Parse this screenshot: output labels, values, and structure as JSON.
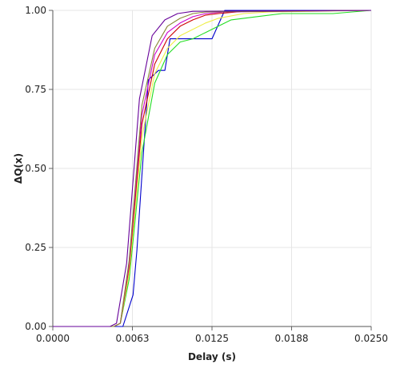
{
  "chart_data": {
    "type": "line",
    "title": "",
    "xlabel": "Delay (s)",
    "ylabel": "ΔQ(x)",
    "xlim": [
      0,
      0.025
    ],
    "ylim": [
      0,
      1
    ],
    "x_ticks": [
      0,
      0.00625,
      0.0125,
      0.01875,
      0.025
    ],
    "x_tick_labels": [
      "0.0000",
      "0.0063",
      "0.0125",
      "0.0188",
      "0.0250"
    ],
    "y_ticks": [
      0,
      0.25,
      0.5,
      0.75,
      1
    ],
    "y_tick_labels": [
      "0.00",
      "0.25",
      "0.50",
      "0.75",
      "1.00"
    ],
    "grid": true,
    "legend": "none",
    "series": [
      {
        "color": "#0000cc",
        "points": [
          [
            0,
            0
          ],
          [
            0.0055,
            0
          ],
          [
            0.0063,
            0.1
          ],
          [
            0.0066,
            0.24
          ],
          [
            0.0075,
            0.78
          ],
          [
            0.0083,
            0.81
          ],
          [
            0.0088,
            0.81
          ],
          [
            0.0092,
            0.91
          ],
          [
            0.0125,
            0.91
          ],
          [
            0.0135,
            1.0
          ],
          [
            0.025,
            1.0
          ]
        ]
      },
      {
        "color": "#22dd22",
        "points": [
          [
            0,
            0
          ],
          [
            0.0048,
            0
          ],
          [
            0.0053,
            0.01
          ],
          [
            0.006,
            0.15
          ],
          [
            0.007,
            0.55
          ],
          [
            0.008,
            0.77
          ],
          [
            0.009,
            0.86
          ],
          [
            0.01,
            0.9
          ],
          [
            0.011,
            0.91
          ],
          [
            0.012,
            0.93
          ],
          [
            0.013,
            0.95
          ],
          [
            0.014,
            0.97
          ],
          [
            0.016,
            0.98
          ],
          [
            0.018,
            0.99
          ],
          [
            0.022,
            0.99
          ],
          [
            0.025,
            1.0
          ]
        ]
      },
      {
        "color": "#eeee44",
        "points": [
          [
            0,
            0
          ],
          [
            0.0048,
            0
          ],
          [
            0.0053,
            0.01
          ],
          [
            0.006,
            0.17
          ],
          [
            0.007,
            0.6
          ],
          [
            0.008,
            0.8
          ],
          [
            0.009,
            0.88
          ],
          [
            0.01,
            0.92
          ],
          [
            0.011,
            0.94
          ],
          [
            0.012,
            0.96
          ],
          [
            0.013,
            0.975
          ],
          [
            0.015,
            0.99
          ],
          [
            0.017,
            0.995
          ],
          [
            0.025,
            1.0
          ]
        ]
      },
      {
        "color": "#cc0000",
        "points": [
          [
            0,
            0
          ],
          [
            0.0048,
            0
          ],
          [
            0.0053,
            0.01
          ],
          [
            0.006,
            0.19
          ],
          [
            0.007,
            0.64
          ],
          [
            0.008,
            0.83
          ],
          [
            0.009,
            0.91
          ],
          [
            0.01,
            0.95
          ],
          [
            0.011,
            0.97
          ],
          [
            0.012,
            0.985
          ],
          [
            0.013,
            0.99
          ],
          [
            0.015,
            0.997
          ],
          [
            0.025,
            1.0
          ]
        ]
      },
      {
        "color": "#cc00cc",
        "points": [
          [
            0,
            0
          ],
          [
            0.0048,
            0
          ],
          [
            0.0053,
            0.01
          ],
          [
            0.006,
            0.2
          ],
          [
            0.007,
            0.67
          ],
          [
            0.008,
            0.86
          ],
          [
            0.009,
            0.93
          ],
          [
            0.01,
            0.96
          ],
          [
            0.011,
            0.98
          ],
          [
            0.012,
            0.99
          ],
          [
            0.0135,
            0.995
          ],
          [
            0.025,
            1.0
          ]
        ]
      },
      {
        "color": "#888833",
        "points": [
          [
            0,
            0
          ],
          [
            0.0048,
            0
          ],
          [
            0.0053,
            0.01
          ],
          [
            0.006,
            0.21
          ],
          [
            0.007,
            0.7
          ],
          [
            0.008,
            0.88
          ],
          [
            0.009,
            0.95
          ],
          [
            0.01,
            0.975
          ],
          [
            0.011,
            0.99
          ],
          [
            0.012,
            0.995
          ],
          [
            0.025,
            1.0
          ]
        ]
      },
      {
        "color": "#660099",
        "points": [
          [
            0,
            0
          ],
          [
            0.0045,
            0
          ],
          [
            0.005,
            0.01
          ],
          [
            0.0058,
            0.2
          ],
          [
            0.0068,
            0.72
          ],
          [
            0.0078,
            0.92
          ],
          [
            0.0088,
            0.97
          ],
          [
            0.0098,
            0.99
          ],
          [
            0.011,
            0.997
          ],
          [
            0.025,
            1.0
          ]
        ]
      }
    ]
  }
}
